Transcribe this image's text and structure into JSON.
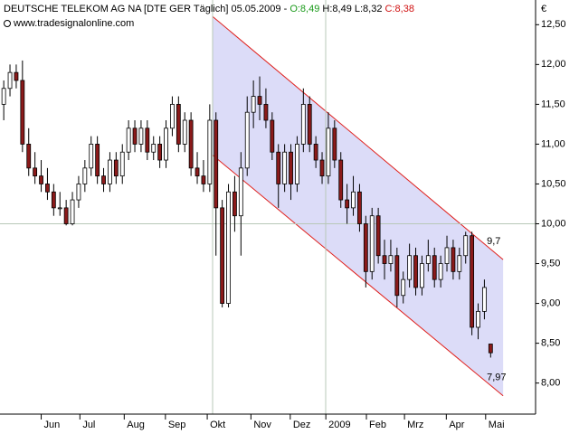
{
  "chart_data": {
    "type": "candlestick",
    "header": {
      "name": "DEUTSCHE TELEKOM AG NA [DTE GER  Täglich]",
      "date": "05.05.2009",
      "sep": "-",
      "open": "O:8,49",
      "high_low": "H:8,49 L:8,32",
      "close": "C:8,38",
      "source": "www.tradesignalonline.com"
    },
    "unit": "€",
    "up_color": "#ffffff",
    "down_color": "#8b1a1a",
    "wick_color": "#000000",
    "candles": [
      [
        11.5,
        11.8,
        11.3,
        11.7
      ],
      [
        11.7,
        12.0,
        11.6,
        11.9
      ],
      [
        11.9,
        12.0,
        11.7,
        11.8
      ],
      [
        11.8,
        12.05,
        10.9,
        11.0
      ],
      [
        11.0,
        11.2,
        10.6,
        10.7
      ],
      [
        10.7,
        10.9,
        10.5,
        10.6
      ],
      [
        10.6,
        10.8,
        10.4,
        10.5
      ],
      [
        10.5,
        10.7,
        10.3,
        10.4
      ],
      [
        10.4,
        10.5,
        10.1,
        10.2
      ],
      [
        10.2,
        10.4,
        10.1,
        10.2
      ],
      [
        10.2,
        10.3,
        9.98,
        10.0
      ],
      [
        10.0,
        10.4,
        9.98,
        10.3
      ],
      [
        10.3,
        10.6,
        10.2,
        10.5
      ],
      [
        10.5,
        10.8,
        10.4,
        10.7
      ],
      [
        10.7,
        11.1,
        10.6,
        11.0
      ],
      [
        11.0,
        11.1,
        10.5,
        10.6
      ],
      [
        10.6,
        10.7,
        10.4,
        10.5
      ],
      [
        10.5,
        10.9,
        10.4,
        10.8
      ],
      [
        10.8,
        10.9,
        10.5,
        10.6
      ],
      [
        10.6,
        11.0,
        10.5,
        10.9
      ],
      [
        10.9,
        11.3,
        10.8,
        11.2
      ],
      [
        11.2,
        11.3,
        10.9,
        11.0
      ],
      [
        11.0,
        11.3,
        10.9,
        11.2
      ],
      [
        11.2,
        11.3,
        10.8,
        10.9
      ],
      [
        10.9,
        11.1,
        10.8,
        11.0
      ],
      [
        11.0,
        11.1,
        10.7,
        10.8
      ],
      [
        10.8,
        11.3,
        10.7,
        11.2
      ],
      [
        11.2,
        11.6,
        11.1,
        11.5
      ],
      [
        11.5,
        11.6,
        10.9,
        11.0
      ],
      [
        11.0,
        11.4,
        10.9,
        11.3
      ],
      [
        11.3,
        11.4,
        10.6,
        10.7
      ],
      [
        10.7,
        10.9,
        10.5,
        10.6
      ],
      [
        10.6,
        10.8,
        10.4,
        10.5
      ],
      [
        10.5,
        11.5,
        10.4,
        11.3
      ],
      [
        11.3,
        11.4,
        9.6,
        10.2
      ],
      [
        10.2,
        10.3,
        8.95,
        9.0
      ],
      [
        9.0,
        10.5,
        8.95,
        10.4
      ],
      [
        10.4,
        10.6,
        9.9,
        10.1
      ],
      [
        10.1,
        10.9,
        9.6,
        10.7
      ],
      [
        10.7,
        11.6,
        10.6,
        11.4
      ],
      [
        11.4,
        11.8,
        11.2,
        11.6
      ],
      [
        11.6,
        11.85,
        11.3,
        11.5
      ],
      [
        11.5,
        11.7,
        11.2,
        11.3
      ],
      [
        11.3,
        11.4,
        10.8,
        10.9
      ],
      [
        10.9,
        11.0,
        10.2,
        10.5
      ],
      [
        10.5,
        11.0,
        10.4,
        10.9
      ],
      [
        10.9,
        11.0,
        10.3,
        10.5
      ],
      [
        10.5,
        11.1,
        10.4,
        11.0
      ],
      [
        11.0,
        11.7,
        10.9,
        11.5
      ],
      [
        11.5,
        11.6,
        10.9,
        11.0
      ],
      [
        11.0,
        11.1,
        10.7,
        10.8
      ],
      [
        10.8,
        10.9,
        10.5,
        10.6
      ],
      [
        10.6,
        11.4,
        10.5,
        11.2
      ],
      [
        11.2,
        11.3,
        10.7,
        10.8
      ],
      [
        10.8,
        10.9,
        10.2,
        10.3
      ],
      [
        10.3,
        10.5,
        10.0,
        10.2
      ],
      [
        10.2,
        10.6,
        10.1,
        10.4
      ],
      [
        10.4,
        10.5,
        9.9,
        10.0
      ],
      [
        10.0,
        10.1,
        9.2,
        9.4
      ],
      [
        9.4,
        10.2,
        9.3,
        10.1
      ],
      [
        10.1,
        10.2,
        9.5,
        9.6
      ],
      [
        9.6,
        9.8,
        9.3,
        9.5
      ],
      [
        9.5,
        9.8,
        9.4,
        9.6
      ],
      [
        9.6,
        9.7,
        8.95,
        9.1
      ],
      [
        9.1,
        9.4,
        9.0,
        9.3
      ],
      [
        9.3,
        9.75,
        9.2,
        9.6
      ],
      [
        9.6,
        9.7,
        9.1,
        9.2
      ],
      [
        9.2,
        9.6,
        9.1,
        9.5
      ],
      [
        9.5,
        9.8,
        9.4,
        9.6
      ],
      [
        9.6,
        9.7,
        9.2,
        9.3
      ],
      [
        9.3,
        9.6,
        9.2,
        9.5
      ],
      [
        9.5,
        9.85,
        9.4,
        9.7
      ],
      [
        9.7,
        9.8,
        9.3,
        9.4
      ],
      [
        9.4,
        9.7,
        9.3,
        9.6
      ],
      [
        9.6,
        9.9,
        9.5,
        9.85
      ],
      [
        9.85,
        9.9,
        8.6,
        8.7
      ],
      [
        8.7,
        9.0,
        8.55,
        8.9
      ],
      [
        8.9,
        9.3,
        8.8,
        9.2
      ],
      [
        8.49,
        8.49,
        8.32,
        8.38
      ]
    ],
    "xlim": [
      -0.6,
      85.2
    ],
    "xticks": [
      {
        "value": 6,
        "label": "Jun"
      },
      {
        "value": 12.2,
        "label": "Jul"
      },
      {
        "value": 19.3,
        "label": "Aug"
      },
      {
        "value": 25.9,
        "label": "Sep"
      },
      {
        "value": 32.6,
        "label": "Okt"
      },
      {
        "value": 39.6,
        "label": "Nov"
      },
      {
        "value": 45.9,
        "label": "Dez"
      },
      {
        "value": 51.6,
        "label": "2009"
      },
      {
        "value": 58.1,
        "label": "Feb"
      },
      {
        "value": 64.2,
        "label": "Mrz"
      },
      {
        "value": 70.9,
        "label": "Apr"
      },
      {
        "value": 77.2,
        "label": "Mai"
      }
    ],
    "ylim": [
      7.61,
      12.81
    ],
    "yticks": [
      {
        "value": 12.5,
        "label": "12,50"
      },
      {
        "value": 12.0,
        "label": "12,00"
      },
      {
        "value": 11.5,
        "label": "11,50"
      },
      {
        "value": 11.0,
        "label": "11,00"
      },
      {
        "value": 10.5,
        "label": "10,50"
      },
      {
        "value": 10.0,
        "label": "10,00"
      },
      {
        "value": 9.5,
        "label": "9,50"
      },
      {
        "value": 9.0,
        "label": "9,00"
      },
      {
        "value": 8.5,
        "label": "8,50"
      },
      {
        "value": 8.0,
        "label": "8,00"
      }
    ],
    "channel": {
      "x": [
        33.5,
        80
      ],
      "upper": [
        12.6,
        9.55
      ],
      "lower": [
        10.86,
        7.84
      ],
      "labels": [
        "9,7",
        "7,97"
      ],
      "color": "#e0201c",
      "fill": "#dcdcf8"
    }
  }
}
